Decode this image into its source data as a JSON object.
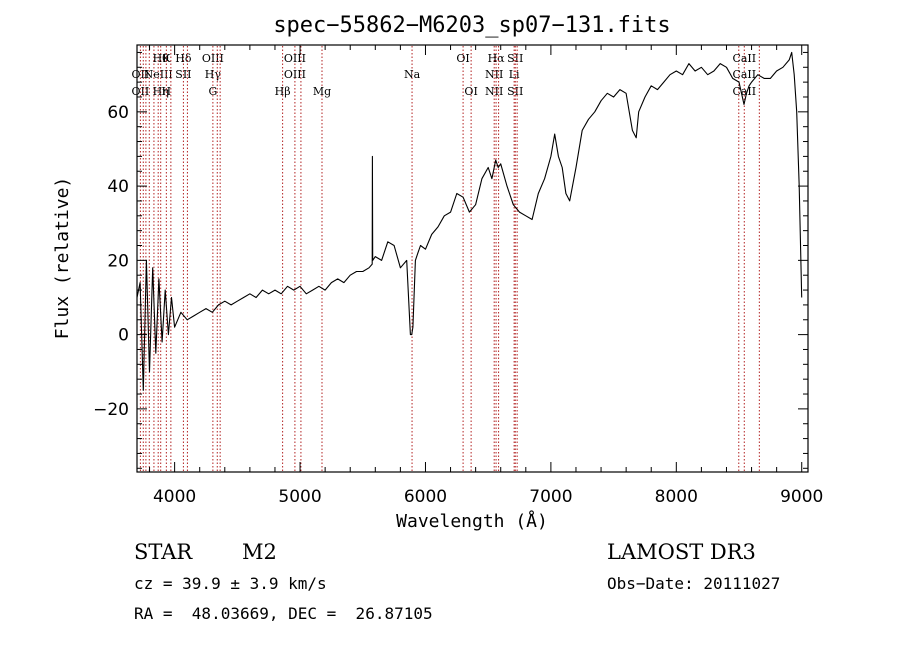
{
  "chart_data": {
    "type": "line",
    "title": "spec−55862−M6203_sp07−131.fits",
    "xlabel": "Wavelength (Å)",
    "ylabel": "Flux (relative)",
    "xlim": [
      3700,
      9050
    ],
    "ylim": [
      -37,
      78
    ],
    "x_ticks": [
      4000,
      5000,
      6000,
      7000,
      8000,
      9000
    ],
    "y_ticks": [
      -20,
      0,
      20,
      40,
      60
    ],
    "y_tick_labels": [
      "−20",
      "0",
      "20",
      "40",
      "60"
    ],
    "grid": false,
    "series": [
      {
        "name": "flux",
        "x": [
          3700,
          3725,
          3750,
          3775,
          3800,
          3825,
          3850,
          3875,
          3900,
          3925,
          3950,
          3975,
          4000,
          4050,
          4100,
          4150,
          4200,
          4250,
          4300,
          4350,
          4400,
          4450,
          4500,
          4550,
          4600,
          4650,
          4700,
          4750,
          4800,
          4850,
          4900,
          4950,
          5000,
          5050,
          5100,
          5150,
          5200,
          5250,
          5300,
          5350,
          5400,
          5450,
          5500,
          5550,
          5575,
          5577,
          5579,
          5600,
          5650,
          5700,
          5750,
          5800,
          5850,
          5880,
          5890,
          5900,
          5920,
          5940,
          5960,
          6000,
          6050,
          6100,
          6150,
          6200,
          6250,
          6300,
          6350,
          6400,
          6450,
          6500,
          6530,
          6560,
          6580,
          6600,
          6650,
          6700,
          6750,
          6800,
          6850,
          6900,
          6950,
          7000,
          7030,
          7060,
          7090,
          7120,
          7150,
          7200,
          7250,
          7300,
          7350,
          7400,
          7450,
          7500,
          7550,
          7600,
          7650,
          7680,
          7700,
          7750,
          7800,
          7850,
          7900,
          7950,
          8000,
          8050,
          8100,
          8150,
          8200,
          8250,
          8300,
          8350,
          8400,
          8450,
          8500,
          8540,
          8560,
          8580,
          8600,
          8650,
          8700,
          8750,
          8800,
          8850,
          8900,
          8920,
          8940,
          8960,
          8980,
          9000
        ],
        "y": [
          10,
          14,
          -15,
          20,
          -10,
          18,
          -5,
          15,
          -2,
          12,
          0,
          10,
          2,
          6,
          4,
          5,
          6,
          7,
          6,
          8,
          9,
          8,
          9,
          10,
          11,
          10,
          12,
          11,
          12,
          11,
          13,
          12,
          13,
          11,
          12,
          13,
          12,
          14,
          15,
          14,
          16,
          17,
          17,
          18,
          19,
          48,
          20,
          21,
          20,
          25,
          24,
          18,
          20,
          0,
          0,
          2,
          20,
          22,
          24,
          23,
          27,
          29,
          32,
          33,
          38,
          37,
          33,
          35,
          42,
          45,
          42,
          47,
          45,
          46,
          40,
          35,
          33,
          32,
          31,
          38,
          42,
          48,
          54,
          48,
          45,
          38,
          36,
          45,
          55,
          58,
          60,
          63,
          65,
          64,
          66,
          65,
          55,
          53,
          60,
          64,
          67,
          66,
          68,
          70,
          71,
          70,
          73,
          71,
          72,
          70,
          71,
          73,
          72,
          69,
          68,
          62,
          65,
          67,
          68,
          70,
          69,
          69,
          71,
          72,
          74,
          76,
          70,
          60,
          40,
          10
        ]
      }
    ],
    "line_markers": [
      {
        "wl": 3727,
        "top": "",
        "mid": "OII",
        "bot": "OII"
      },
      {
        "wl": 3750,
        "top": "",
        "mid": "",
        "bot": ""
      },
      {
        "wl": 3771,
        "top": "",
        "mid": "",
        "bot": ""
      },
      {
        "wl": 3798,
        "top": "",
        "mid": "",
        "bot": ""
      },
      {
        "wl": 3835,
        "top": "",
        "mid": "",
        "bot": ""
      },
      {
        "wl": 3869,
        "top": "",
        "mid": "NeIII",
        "bot": ""
      },
      {
        "wl": 3889,
        "top": "Hθ",
        "mid": "",
        "bot": "Hη"
      },
      {
        "wl": 3934,
        "top": "K",
        "mid": "",
        "bot": "H"
      },
      {
        "wl": 3970,
        "top": "",
        "mid": "",
        "bot": ""
      },
      {
        "wl": 4070,
        "top": "Hδ",
        "mid": "SII",
        "bot": ""
      },
      {
        "wl": 4102,
        "top": "",
        "mid": "",
        "bot": ""
      },
      {
        "wl": 4305,
        "top": "OIII",
        "mid": "Hγ",
        "bot": "G"
      },
      {
        "wl": 4340,
        "top": "",
        "mid": "",
        "bot": ""
      },
      {
        "wl": 4363,
        "top": "",
        "mid": "",
        "bot": ""
      },
      {
        "wl": 4861,
        "top": "",
        "mid": "",
        "bot": "Hβ"
      },
      {
        "wl": 4959,
        "top": "OIII",
        "mid": "OIII",
        "bot": ""
      },
      {
        "wl": 5007,
        "top": "",
        "mid": "",
        "bot": ""
      },
      {
        "wl": 5175,
        "top": "",
        "mid": "",
        "bot": "Mg"
      },
      {
        "wl": 5893,
        "top": "",
        "mid": "Na",
        "bot": ""
      },
      {
        "wl": 6300,
        "top": "OI",
        "mid": "",
        "bot": ""
      },
      {
        "wl": 6364,
        "top": "",
        "mid": "",
        "bot": "OI"
      },
      {
        "wl": 6548,
        "top": "",
        "mid": "NII",
        "bot": "NII"
      },
      {
        "wl": 6563,
        "top": "Hα",
        "mid": "",
        "bot": ""
      },
      {
        "wl": 6583,
        "top": "",
        "mid": "",
        "bot": ""
      },
      {
        "wl": 6707,
        "top": "",
        "mid": "Li",
        "bot": ""
      },
      {
        "wl": 6716,
        "top": "SII",
        "mid": "",
        "bot": "SII"
      },
      {
        "wl": 6731,
        "top": "",
        "mid": "",
        "bot": ""
      },
      {
        "wl": 8498,
        "top": "",
        "mid": "",
        "bot": ""
      },
      {
        "wl": 8542,
        "top": "CaII",
        "mid": "CaII",
        "bot": "CaII"
      },
      {
        "wl": 8662,
        "top": "",
        "mid": "",
        "bot": ""
      }
    ],
    "colors": {
      "spectrum": "#000000",
      "markers": "#b22222",
      "axes": "#000000"
    }
  },
  "info": {
    "object_class": "STAR",
    "subclass": "M2",
    "survey": "LAMOST DR3",
    "cz": "cz = 39.9 ± 3.9 km/s",
    "obs_date": "Obs−Date: 20111027",
    "radec": "RA =  48.03669, DEC =  26.87105"
  }
}
